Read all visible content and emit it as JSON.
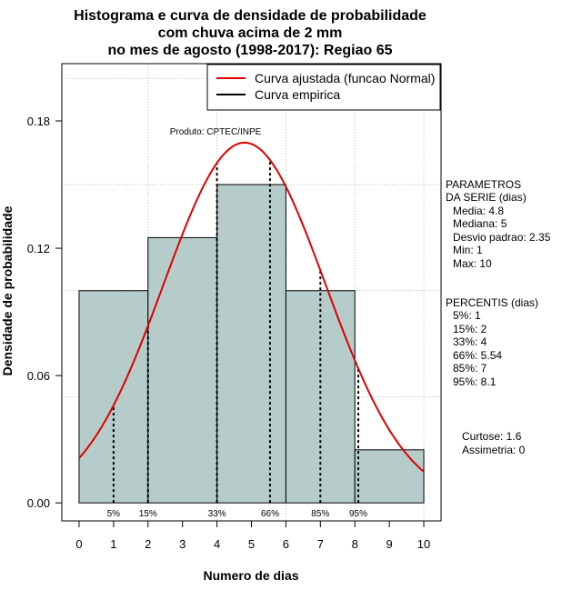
{
  "chart_data": {
    "type": "bar",
    "title_lines": [
      "Histograma e curva de densidade de probabilidade",
      "com chuva acima de 2 mm",
      "no mes de agosto (1998-2017): Regiao 65"
    ],
    "xlabel": "Numero de dias",
    "ylabel": "Densidade de probabilidade",
    "xlim": [
      -0.5,
      10.5
    ],
    "ylim": [
      -0.0085,
      0.207
    ],
    "x_ticks": [
      0,
      1,
      2,
      3,
      4,
      5,
      6,
      7,
      8,
      9,
      10
    ],
    "y_ticks": [
      0.0,
      0.06,
      0.12,
      0.18
    ],
    "y_tick_labels": [
      "0.00",
      "0.06",
      "0.12",
      "0.18"
    ],
    "gridlines_y": [
      0.05,
      0.1,
      0.15,
      0.2
    ],
    "gridlines_x": [
      2,
      4,
      6,
      8,
      10
    ],
    "histogram": {
      "bins": [
        {
          "from": 0,
          "to": 2,
          "density": 0.1
        },
        {
          "from": 2,
          "to": 4,
          "density": 0.125
        },
        {
          "from": 4,
          "to": 6,
          "density": 0.15
        },
        {
          "from": 6,
          "to": 8,
          "density": 0.1
        },
        {
          "from": 8,
          "to": 10,
          "density": 0.025
        }
      ],
      "fill": "#b6cccb"
    },
    "normal_curve": {
      "mean": 4.8,
      "sd": 2.35,
      "x_range": [
        0,
        10
      ],
      "color": "#dd0000"
    },
    "legend": [
      {
        "label": "Curva ajustada (funcao Normal)",
        "color": "#dd0000"
      },
      {
        "label": "Curva empirica",
        "color": "#000000"
      }
    ],
    "percentile_markers": [
      {
        "label": "5%",
        "x": 1
      },
      {
        "label": "15%",
        "x": 2
      },
      {
        "label": "33%",
        "x": 4
      },
      {
        "label": "66%",
        "x": 5.54
      },
      {
        "label": "85%",
        "x": 7
      },
      {
        "label": "95%",
        "x": 8.1
      }
    ],
    "annotation": "Produto: CPTEC/INPE",
    "parameters": {
      "title_lines": [
        "PARAMETROS",
        "DA SERIE (dias)"
      ],
      "items": [
        "Media: 4.8",
        "Mediana: 5",
        "Desvio padrao: 2.35",
        "Min: 1",
        "Max: 10"
      ]
    },
    "percentis": {
      "title": "PERCENTIS (dias)",
      "items": [
        "5%: 1",
        "15%: 2",
        "33%: 4",
        "66%: 5.54",
        "85%: 7",
        "95%: 8.1"
      ]
    },
    "shape": {
      "items": [
        "Curtose: 1.6",
        "Assimetria: 0"
      ]
    }
  }
}
